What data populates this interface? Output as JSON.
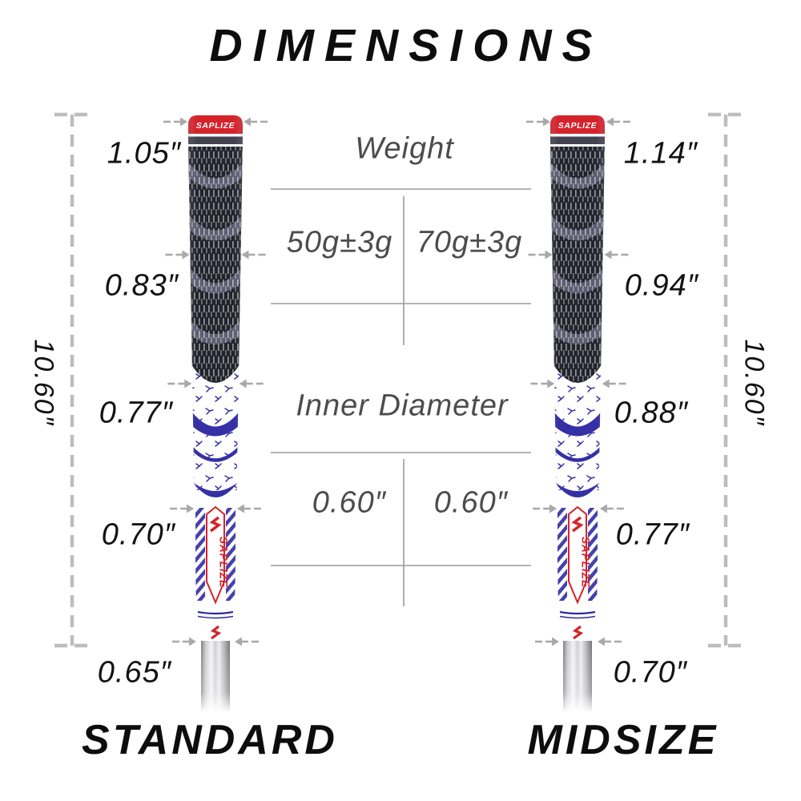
{
  "title": "DIMENSIONS",
  "brand": "SAPLIZE",
  "table": {
    "weight_label": "Weight",
    "weight_standard": "50g±3g",
    "weight_midsize": "70g±3g",
    "inner_diameter_label": "Inner Diameter",
    "inner_diameter_standard": "0.60″",
    "inner_diameter_midsize": "0.60″"
  },
  "grips": [
    {
      "name": "STANDARD",
      "length": "10.60″",
      "diameters": [
        "1.05″",
        "0.83″",
        "0.77″",
        "0.70″",
        "0.65″"
      ]
    },
    {
      "name": "MIDSIZE",
      "length": "10.60″",
      "diameters": [
        "1.14″",
        "0.94″",
        "0.88″",
        "0.77″",
        "0.70″"
      ]
    }
  ],
  "colors": {
    "accent_red": "#d4232b",
    "pattern_blue": "#3530a6",
    "cord_dark": "#23232d",
    "dimension_gray": "#a9a9a9",
    "table_line_gray": "#9a9a9a",
    "label_black": "#121212",
    "table_text_gray": "#4c4c4c"
  }
}
